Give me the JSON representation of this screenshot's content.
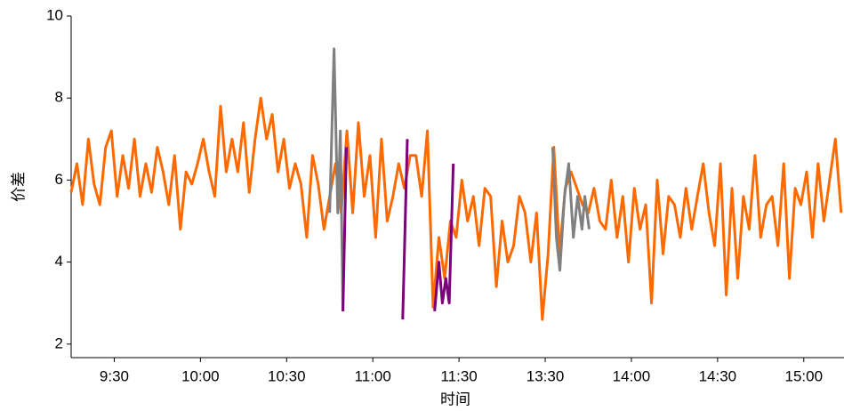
{
  "chart_data": {
    "type": "line",
    "x_label": "时间",
    "y_label": "价差",
    "xlim": [
      0,
      269
    ],
    "ylim": [
      1.67,
      10
    ],
    "yticks": [
      2,
      4,
      6,
      8,
      10
    ],
    "xticks": [
      {
        "value": 15,
        "label": "9:30"
      },
      {
        "value": 45,
        "label": "10:00"
      },
      {
        "value": 75,
        "label": "10:30"
      },
      {
        "value": 105,
        "label": "11:00"
      },
      {
        "value": 135,
        "label": "11:30"
      },
      {
        "value": 165,
        "label": "13:30"
      },
      {
        "value": 195,
        "label": "14:00"
      },
      {
        "value": 225,
        "label": "14:30"
      },
      {
        "value": 255,
        "label": "15:00"
      }
    ],
    "series": [
      {
        "color": "#ff6a00",
        "x": [
          0,
          2,
          4,
          6,
          8,
          10,
          12,
          14,
          16,
          18,
          20,
          22,
          24,
          26,
          28,
          30,
          32,
          34,
          36,
          38,
          40,
          42,
          44,
          46,
          48,
          50,
          52,
          54,
          56,
          58,
          60,
          62,
          64,
          66,
          68,
          70,
          72,
          74,
          76,
          78,
          80,
          82,
          84,
          86,
          88,
          90,
          92,
          94,
          96,
          98,
          100,
          102,
          104,
          106,
          108,
          110,
          112,
          114,
          116,
          118,
          120,
          122,
          124,
          126,
          128,
          130,
          132,
          134,
          136,
          138,
          140,
          142,
          144,
          146,
          148,
          150,
          152,
          154,
          156,
          158,
          160,
          162,
          164,
          166,
          168,
          170,
          172,
          174,
          176,
          178,
          180,
          182,
          184,
          186,
          188,
          190,
          192,
          194,
          196,
          198,
          200,
          202,
          204,
          206,
          208,
          210,
          212,
          214,
          216,
          218,
          220,
          222,
          224,
          226,
          228,
          230,
          232,
          234,
          236,
          238,
          240,
          242,
          244,
          246,
          248,
          250,
          252,
          254,
          256,
          258,
          260,
          262,
          264,
          266,
          268
        ],
        "values": [
          5.7,
          6.4,
          5.4,
          7.0,
          5.9,
          5.4,
          6.8,
          7.2,
          5.6,
          6.6,
          5.8,
          7.0,
          5.6,
          6.4,
          5.7,
          6.8,
          6.2,
          5.4,
          6.6,
          4.8,
          6.2,
          5.9,
          6.4,
          7.0,
          6.2,
          5.6,
          7.8,
          6.2,
          7.0,
          6.2,
          7.4,
          5.7,
          7.0,
          8.0,
          7.0,
          7.6,
          6.2,
          7.0,
          5.8,
          6.4,
          5.9,
          4.6,
          6.6,
          5.9,
          4.8,
          5.6,
          6.4,
          5.2,
          7.2,
          5.2,
          7.4,
          5.6,
          6.6,
          4.6,
          7.0,
          5.0,
          5.6,
          6.4,
          5.8,
          6.6,
          6.6,
          5.6,
          7.2,
          2.9,
          4.6,
          3.6,
          5.0,
          4.6,
          6.0,
          5.0,
          5.6,
          4.4,
          5.8,
          5.6,
          3.4,
          5.0,
          4.0,
          4.4,
          5.6,
          5.2,
          4.0,
          5.2,
          2.6,
          4.2,
          6.8,
          4.2,
          5.8,
          6.2,
          5.8,
          5.4,
          5.2,
          5.8,
          5.0,
          4.8,
          6.0,
          4.6,
          5.6,
          4.0,
          5.8,
          4.8,
          5.4,
          3.0,
          6.0,
          4.2,
          5.6,
          5.4,
          4.6,
          5.8,
          4.8,
          5.6,
          6.4,
          5.2,
          4.4,
          6.4,
          3.2,
          5.8,
          3.6,
          5.6,
          4.8,
          6.6,
          4.6,
          5.4,
          5.6,
          4.4,
          6.4,
          3.6,
          5.8,
          5.4,
          6.2,
          4.6,
          6.4,
          5.0,
          6.0,
          7.0,
          5.2
        ]
      },
      {
        "color": "#808080",
        "x": [
          90,
          91.5,
          92.8,
          93.7,
          94.6,
          130,
          167.6,
          168.9,
          170.1,
          171.7,
          173.2,
          174.8,
          176.3,
          177.8,
          178.8,
          180.3
        ],
        "values": [
          5.2,
          9.2,
          5.2,
          7.2,
          2.8,
          null,
          6.8,
          4.6,
          3.8,
          5.6,
          6.4,
          4.6,
          5.6,
          4.8,
          5.6,
          4.8
        ]
      },
      {
        "color": "#7b007b",
        "x": [
          94.6,
          95.8,
          105,
          115.4,
          117,
          122,
          126.5,
          128,
          129.2,
          130.4,
          131.6,
          133
        ],
        "values": [
          2.8,
          6.8,
          null,
          2.6,
          7.0,
          null,
          2.8,
          4.0,
          3.0,
          3.6,
          3.0,
          6.4
        ]
      }
    ]
  }
}
